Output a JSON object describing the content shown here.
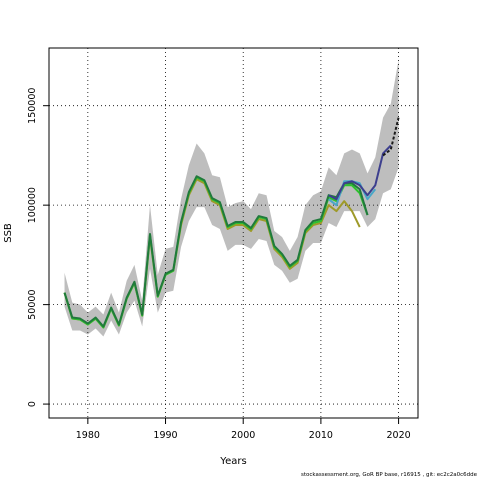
{
  "chart_data": {
    "type": "line",
    "xlabel": "Years",
    "ylabel": "SSB",
    "xlim": [
      1975,
      2022.5
    ],
    "ylim": [
      -7000,
      179000
    ],
    "x_ticks": [
      1980,
      1990,
      2000,
      2010,
      2020
    ],
    "y_ticks": [
      0,
      50000,
      100000,
      150000
    ],
    "grid": true,
    "grid_style": "dotted",
    "uncertainty_band": {
      "color": "#bebebe",
      "x": [
        1977,
        1978,
        1979,
        1980,
        1981,
        1982,
        1983,
        1984,
        1985,
        1986,
        1987,
        1988,
        1989,
        1990,
        1991,
        1992,
        1993,
        1994,
        1995,
        1996,
        1997,
        1998,
        1999,
        2000,
        2001,
        2002,
        2003,
        2004,
        2005,
        2006,
        2007,
        2008,
        2009,
        2010,
        2011,
        2012,
        2013,
        2014,
        2015,
        2016,
        2017,
        2018,
        2019,
        2020
      ],
      "upper": [
        66000,
        51000,
        50000,
        46000,
        49000,
        45000,
        56000,
        46000,
        62000,
        70000,
        52000,
        100000,
        65000,
        78000,
        79000,
        103000,
        120000,
        131000,
        126000,
        115000,
        114000,
        99000,
        101000,
        102000,
        98000,
        106000,
        105000,
        87000,
        84000,
        77000,
        84000,
        100000,
        105000,
        107000,
        119000,
        115000,
        126000,
        128000,
        126000,
        116000,
        124000,
        144000,
        151000,
        173000
      ],
      "lower": [
        49000,
        37000,
        37000,
        35000,
        38000,
        34000,
        42000,
        35000,
        46000,
        52000,
        39000,
        68000,
        46000,
        56000,
        57000,
        79000,
        92000,
        99000,
        99000,
        90000,
        88000,
        77000,
        80000,
        80000,
        78000,
        83000,
        82000,
        70000,
        67000,
        61000,
        63000,
        77000,
        81000,
        81000,
        91000,
        89000,
        97000,
        97000,
        97000,
        89000,
        93000,
        106000,
        108000,
        119000
      ]
    },
    "series": [
      {
        "color": "#9e9a29",
        "x": [
          1977,
          1978,
          1979,
          1980,
          1981,
          1982,
          1983,
          1984,
          1985,
          1986,
          1987,
          1988,
          1989,
          1990,
          1991,
          1992,
          1993,
          1994,
          1995,
          1996,
          1997,
          1998,
          1999,
          2000,
          2001,
          2002,
          2003,
          2004,
          2005,
          2006,
          2007,
          2008,
          2009,
          2010,
          2011,
          2012,
          2013,
          2014,
          2015
        ],
        "values": [
          56000,
          43000,
          42500,
          40000,
          43000,
          38500,
          48000,
          39500,
          53000,
          61000,
          44500,
          84000,
          54000,
          65000,
          67000,
          90000,
          105000,
          113000,
          111000,
          102000,
          100000,
          88000,
          90000,
          90000,
          87000,
          93000,
          92000,
          78000,
          74000,
          68000,
          71000,
          86000,
          90000,
          91000,
          100000,
          97000,
          102000,
          97000,
          89000
        ]
      },
      {
        "color": "#2dc22d",
        "x": [
          1977,
          1978,
          1979,
          1980,
          1981,
          1982,
          1983,
          1984,
          1985,
          1986,
          1987,
          1988,
          1989,
          1990,
          1991,
          1992,
          1993,
          1994,
          1995,
          1996,
          1997,
          1998,
          1999,
          2000,
          2001,
          2002,
          2003,
          2004,
          2005,
          2006,
          2007,
          2008,
          2009,
          2010,
          2011,
          2012,
          2013,
          2014,
          2015,
          2016
        ],
        "values": [
          56000,
          43000,
          42500,
          40000,
          43000,
          38500,
          48000,
          39500,
          53000,
          61000,
          44500,
          85000,
          54000,
          65000,
          67000,
          91000,
          106000,
          114000,
          112000,
          103000,
          101000,
          89000,
          91000,
          91000,
          88000,
          94000,
          93000,
          79000,
          75000,
          69000,
          72000,
          87000,
          91000,
          92000,
          104000,
          102000,
          110000,
          110000,
          106000,
          95000
        ]
      },
      {
        "color": "#217a3c",
        "x": [
          1977,
          1978,
          1979,
          1980,
          1981,
          1982,
          1983,
          1984,
          1985,
          1986,
          1987,
          1988,
          1989,
          1990,
          1991,
          1992,
          1993,
          1994,
          1995,
          1996,
          1997,
          1998,
          1999,
          2000,
          2001,
          2002,
          2003,
          2004,
          2005,
          2006,
          2007,
          2008,
          2009,
          2010,
          2011,
          2012,
          2013,
          2014,
          2015,
          2016
        ],
        "values": [
          56000,
          43500,
          43000,
          40500,
          43500,
          39000,
          48500,
          40000,
          53500,
          61500,
          45000,
          85500,
          54500,
          65500,
          67500,
          91500,
          106500,
          114500,
          112500,
          103500,
          101500,
          89500,
          91500,
          91500,
          88500,
          94500,
          93500,
          79500,
          75500,
          69500,
          72500,
          87500,
          92000,
          93000,
          105000,
          104000,
          111000,
          111000,
          108000,
          95000
        ]
      },
      {
        "color": "#48a7c8",
        "x": [
          2011,
          2012,
          2013,
          2014,
          2015,
          2016,
          2017
        ],
        "values": [
          103000,
          100000,
          112000,
          112000,
          111000,
          103000,
          108000
        ]
      },
      {
        "color": "#3d3f8e",
        "x": [
          2011,
          2012,
          2013,
          2014,
          2015,
          2016,
          2017,
          2018,
          2019
        ],
        "values": [
          105000,
          103000,
          111000,
          112000,
          110000,
          105000,
          110000,
          126000,
          130000
        ]
      },
      {
        "color": "#1a1a1a",
        "dashed": true,
        "x": [
          2018,
          2019,
          2020
        ],
        "values": [
          125000,
          128000,
          144000
        ]
      }
    ]
  },
  "footer": "stockassessment.org, GoR BP base, r16915 , git: ec2c2a0c6dde"
}
